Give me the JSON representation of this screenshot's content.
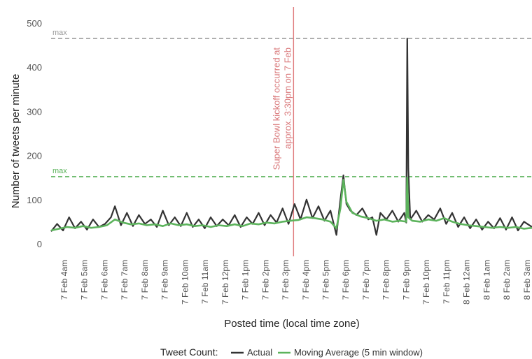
{
  "chart_data": {
    "type": "line",
    "xlabel": "Posted time (local time zone)",
    "ylabel": "Number of tweets per minute",
    "ylim": [
      0,
      500
    ],
    "yticks": [
      0,
      100,
      200,
      300,
      400,
      500
    ],
    "grid": false,
    "legend_placement": "bottom",
    "legend": {
      "title": "Tweet Count:",
      "entries": [
        "Actual",
        "Moving Average (5 min window)"
      ]
    },
    "x_tick_labels": [
      "7 Feb  4am",
      "7 Feb  5am",
      "7 Feb  6am",
      "7 Feb  7am",
      "7 Feb  8am",
      "7 Feb  9am",
      "7 Feb 10am",
      "7 Feb 11am",
      "7 Feb 12pm",
      "7 Feb  1pm",
      "7 Feb  2pm",
      "7 Feb  3pm",
      "7 Feb  4pm",
      "7 Feb  5pm",
      "7 Feb  6pm",
      "7 Feb  7pm",
      "7 Feb  8pm",
      "7 Feb  9pm",
      "7 Feb 10pm",
      "7 Feb 11pm",
      "8 Feb 12am",
      "8 Feb  1am",
      "8 Feb  2am",
      "8 Feb  3am"
    ],
    "x_range_hours": [
      3.2,
      27.3
    ],
    "reference_lines": [
      {
        "label": "max",
        "y": 465,
        "color": "#999999"
      },
      {
        "label": "max",
        "y": 152,
        "color": "#5cb35c"
      }
    ],
    "annotation": {
      "x_hour": 15.35,
      "lines": [
        "Super Bowl kickoff occurred at",
        "approx. 3:30pm on 7 Feb"
      ],
      "color": "#e07b7d"
    },
    "series": [
      {
        "name": "Actual",
        "color": "#333333",
        "x_hours": [
          3.2,
          3.5,
          3.8,
          4.1,
          4.4,
          4.7,
          5.0,
          5.3,
          5.6,
          5.9,
          6.2,
          6.4,
          6.7,
          7.0,
          7.3,
          7.6,
          7.9,
          8.2,
          8.5,
          8.8,
          9.1,
          9.4,
          9.7,
          10.0,
          10.3,
          10.6,
          10.9,
          11.2,
          11.5,
          11.8,
          12.1,
          12.4,
          12.7,
          13.0,
          13.3,
          13.6,
          13.9,
          14.2,
          14.5,
          14.8,
          15.1,
          15.4,
          15.7,
          16.0,
          16.3,
          16.6,
          16.9,
          17.2,
          17.5,
          17.7,
          17.85,
          18.0,
          18.2,
          18.5,
          18.8,
          19.1,
          19.3,
          19.5,
          19.7,
          20.0,
          20.3,
          20.6,
          20.9,
          21.0,
          21.05,
          21.1,
          21.2,
          21.5,
          21.8,
          22.1,
          22.4,
          22.7,
          23.0,
          23.3,
          23.6,
          23.9,
          24.2,
          24.5,
          24.8,
          25.1,
          25.4,
          25.7,
          26.0,
          26.3,
          26.6,
          26.9,
          27.3
        ],
        "values": [
          28,
          45,
          30,
          60,
          35,
          50,
          32,
          55,
          38,
          45,
          60,
          85,
          42,
          70,
          40,
          65,
          45,
          55,
          38,
          75,
          42,
          60,
          40,
          70,
          38,
          55,
          35,
          60,
          40,
          55,
          42,
          65,
          38,
          60,
          45,
          70,
          42,
          65,
          48,
          80,
          45,
          90,
          55,
          100,
          58,
          85,
          52,
          75,
          20,
          100,
          155,
          90,
          75,
          65,
          80,
          55,
          60,
          20,
          70,
          55,
          75,
          50,
          70,
          48,
          465,
          170,
          55,
          75,
          50,
          65,
          55,
          80,
          45,
          70,
          38,
          60,
          35,
          55,
          32,
          50,
          35,
          58,
          32,
          60,
          30,
          50,
          38
        ]
      },
      {
        "name": "Moving Average (5 min window)",
        "color": "#5cb35c",
        "x_hours": [
          3.2,
          3.6,
          4.0,
          4.4,
          4.8,
          5.2,
          5.6,
          6.0,
          6.4,
          6.8,
          7.2,
          7.6,
          8.0,
          8.4,
          8.8,
          9.2,
          9.6,
          10.0,
          10.4,
          10.8,
          11.2,
          11.6,
          12.0,
          12.4,
          12.8,
          13.2,
          13.6,
          14.0,
          14.4,
          14.8,
          15.2,
          15.6,
          16.0,
          16.4,
          16.8,
          17.2,
          17.5,
          17.7,
          17.85,
          18.0,
          18.3,
          18.7,
          19.1,
          19.5,
          19.9,
          20.3,
          20.7,
          21.0,
          21.05,
          21.1,
          21.3,
          21.7,
          22.1,
          22.5,
          22.9,
          23.3,
          23.7,
          24.1,
          24.5,
          24.9,
          25.3,
          25.7,
          26.1,
          26.5,
          26.9,
          27.3
        ],
        "values": [
          30,
          34,
          38,
          36,
          40,
          36,
          38,
          42,
          55,
          48,
          44,
          46,
          42,
          44,
          40,
          46,
          42,
          44,
          40,
          42,
          38,
          42,
          40,
          44,
          40,
          46,
          44,
          48,
          46,
          50,
          52,
          54,
          60,
          58,
          55,
          50,
          35,
          80,
          145,
          95,
          70,
          62,
          58,
          52,
          55,
          50,
          52,
          50,
          150,
          60,
          52,
          50,
          55,
          52,
          58,
          50,
          45,
          42,
          40,
          38,
          36,
          38,
          36,
          38,
          34,
          36
        ]
      }
    ]
  }
}
